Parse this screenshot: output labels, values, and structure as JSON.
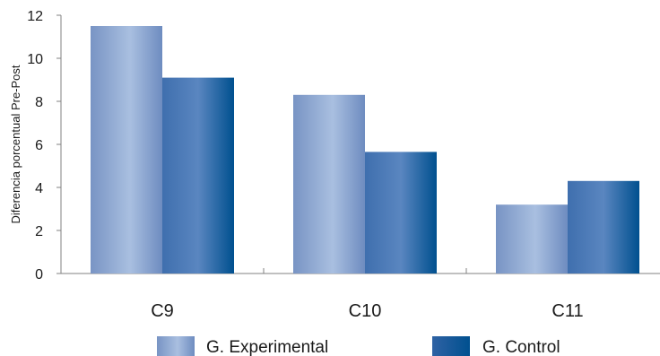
{
  "chart_data": {
    "type": "bar",
    "title": "",
    "xlabel": "",
    "ylabel": "Diferencia porcentual Pre-Post",
    "ylim": [
      0,
      12
    ],
    "yticks": [
      0,
      2,
      4,
      6,
      8,
      10,
      12
    ],
    "categories": [
      "C9",
      "C10",
      "C11"
    ],
    "series": [
      {
        "name": "G. Experimental",
        "values": [
          11.5,
          8.3,
          3.2
        ],
        "color": "#8aa7d2"
      },
      {
        "name": "G. Control",
        "values": [
          9.1,
          5.65,
          4.3
        ],
        "color": "#1f5fa3"
      }
    ],
    "legend_position": "bottom",
    "grid": false
  }
}
